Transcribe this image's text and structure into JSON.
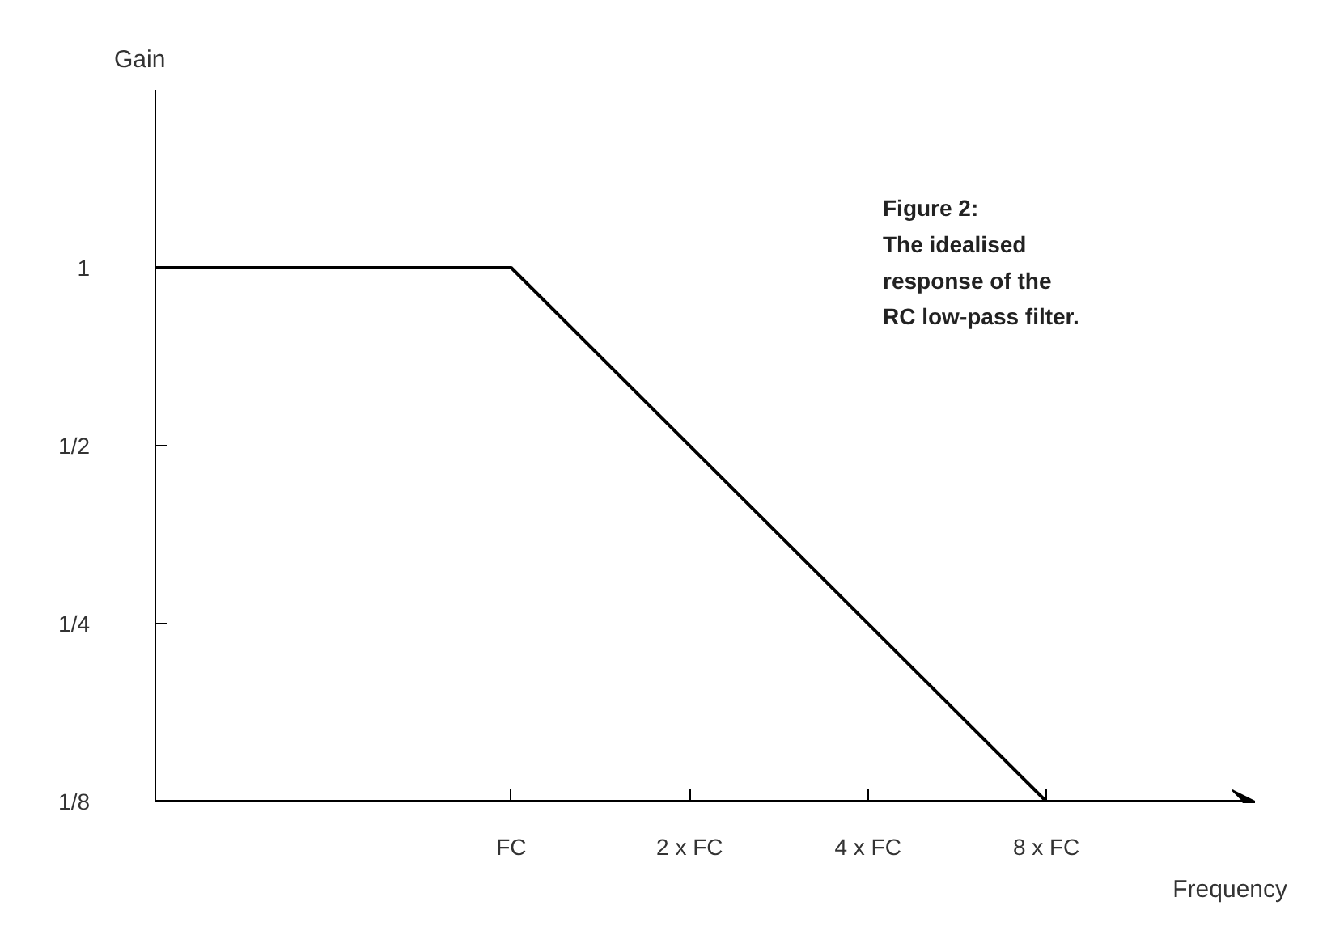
{
  "chart_data": {
    "type": "line",
    "xlabel": "Frequency",
    "ylabel": "Gain",
    "annotations": [
      "Figure 2:\nThe idealised\nresponse of the\nRC low-pass filter."
    ],
    "log": "xy",
    "grid": false,
    "marker": "none",
    "line_style": "solid",
    "series": [
      {
        "color": "#000000",
        "x": [
          0.25,
          1,
          8
        ],
        "values": [
          1,
          1,
          0.125
        ]
      }
    ],
    "xlim": [
      0.25,
      18
    ],
    "ylim": [
      0.125,
      2
    ],
    "xticks": [
      {
        "value": 1,
        "label": "FC"
      },
      {
        "value": 2,
        "label": "2 x FC"
      },
      {
        "value": 4,
        "label": "4 x FC"
      },
      {
        "value": 8,
        "label": "8 x FC"
      }
    ],
    "yticks": [
      {
        "value": 0.125,
        "label": "1/8"
      },
      {
        "value": 0.25,
        "label": "1/4"
      },
      {
        "value": 0.5,
        "label": "1/2"
      },
      {
        "value": 1,
        "label": "1"
      }
    ]
  }
}
